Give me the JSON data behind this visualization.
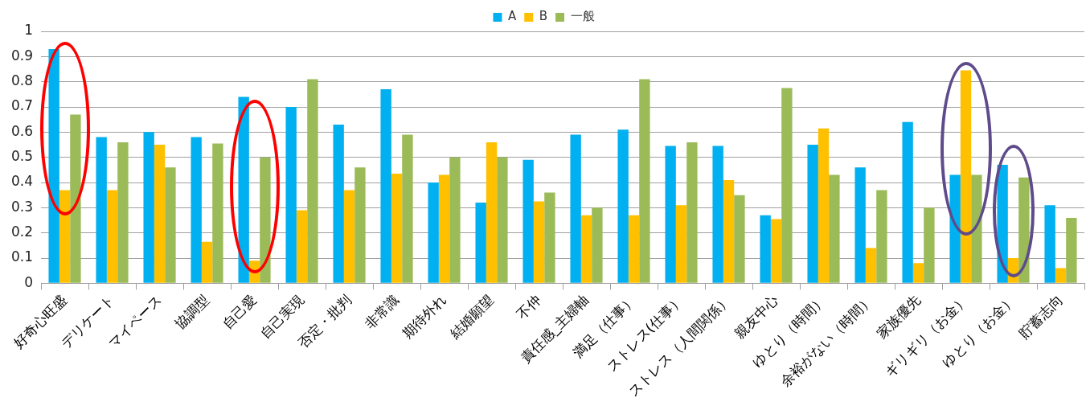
{
  "chart_data": {
    "type": "bar",
    "categories": [
      "好奇心旺盛",
      "デリケート",
      "マイペース",
      "協調型",
      "自己愛",
      "自己実現",
      "否定・批判",
      "非常識",
      "期待外れ",
      "結婚願望",
      "不仲",
      "責任感_主婦軸",
      "満足（仕事）",
      "ストレス(仕事）",
      "ストレス（人間関係）",
      "親友中心",
      "ゆとり（時間）",
      "余裕がない（時間）",
      "家族優先",
      "ギリギリ（お金）",
      "ゆとり（お金）",
      "貯蓄志向"
    ],
    "series": [
      {
        "name": "A",
        "color": "#00b0f0",
        "values": [
          0.93,
          0.58,
          0.6,
          0.58,
          0.74,
          0.7,
          0.63,
          0.77,
          0.4,
          0.32,
          0.49,
          0.59,
          0.61,
          0.545,
          0.545,
          0.27,
          0.55,
          0.46,
          0.64,
          0.43,
          0.47,
          0.31
        ]
      },
      {
        "name": "B",
        "color": "#ffc000",
        "values": [
          0.37,
          0.37,
          0.55,
          0.165,
          0.09,
          0.29,
          0.37,
          0.435,
          0.43,
          0.56,
          0.325,
          0.27,
          0.27,
          0.31,
          0.41,
          0.255,
          0.615,
          0.14,
          0.08,
          0.845,
          0.1,
          0.06
        ]
      },
      {
        "name": "一般",
        "color": "#9bbb59",
        "values": [
          0.67,
          0.56,
          0.46,
          0.555,
          0.5,
          0.81,
          0.46,
          0.59,
          0.5,
          0.5,
          0.36,
          0.3,
          0.81,
          0.56,
          0.35,
          0.775,
          0.43,
          0.37,
          0.3,
          0.43,
          0.42,
          0.26
        ]
      }
    ],
    "ylim": [
      0,
      1
    ],
    "yticks": [
      0,
      0.1,
      0.2,
      0.3,
      0.4,
      0.5,
      0.6,
      0.7,
      0.8,
      0.9,
      1
    ],
    "grid": "y",
    "legend": "top"
  }
}
